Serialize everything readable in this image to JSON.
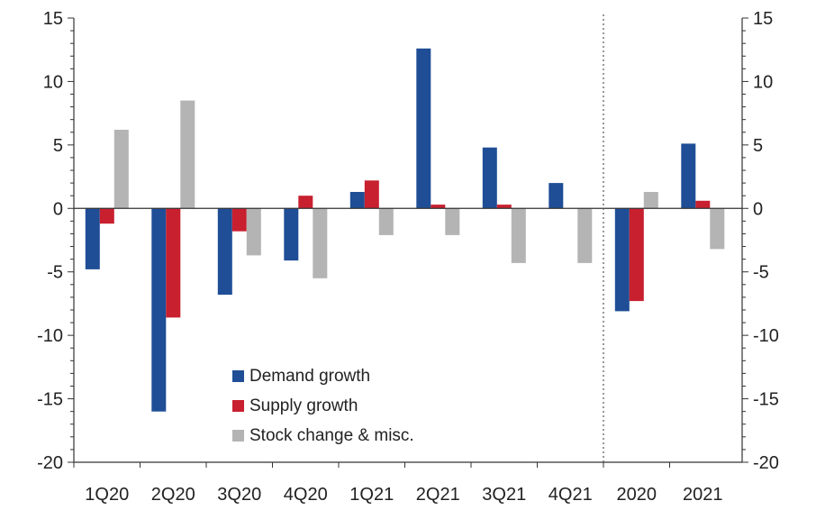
{
  "chart_data": {
    "type": "bar",
    "categories": [
      "1Q20",
      "2Q20",
      "3Q20",
      "4Q20",
      "1Q21",
      "2Q21",
      "3Q21",
      "4Q21",
      "2020",
      "2021"
    ],
    "series": [
      {
        "name": "Demand growth",
        "color": "#1f4e96",
        "values": [
          -4.8,
          -16.0,
          -6.8,
          -4.1,
          1.3,
          12.6,
          4.8,
          2.0,
          -8.1,
          5.1
        ]
      },
      {
        "name": "Supply growth",
        "color": "#c8202f",
        "values": [
          -1.2,
          -8.6,
          -1.8,
          1.0,
          2.2,
          0.3,
          0.3,
          0.0,
          -7.3,
          0.6
        ]
      },
      {
        "name": "Stock change & misc.",
        "color": "#b4b4b4",
        "values": [
          6.2,
          8.5,
          -3.7,
          -5.5,
          -2.1,
          -2.1,
          -4.3,
          -4.3,
          1.3,
          -3.2
        ]
      }
    ],
    "ylim": [
      -20,
      15
    ],
    "yticks": [
      15,
      10,
      5,
      0,
      -5,
      -10,
      -15,
      -20
    ],
    "ytick_labels": [
      "15",
      "10",
      "5",
      "0",
      "-5",
      "-10",
      "-15",
      "-20"
    ],
    "secondary_axis": true,
    "divider_after": "4Q21",
    "divider_style": "dotted",
    "legend_position": "bottom-center",
    "grid": false
  }
}
